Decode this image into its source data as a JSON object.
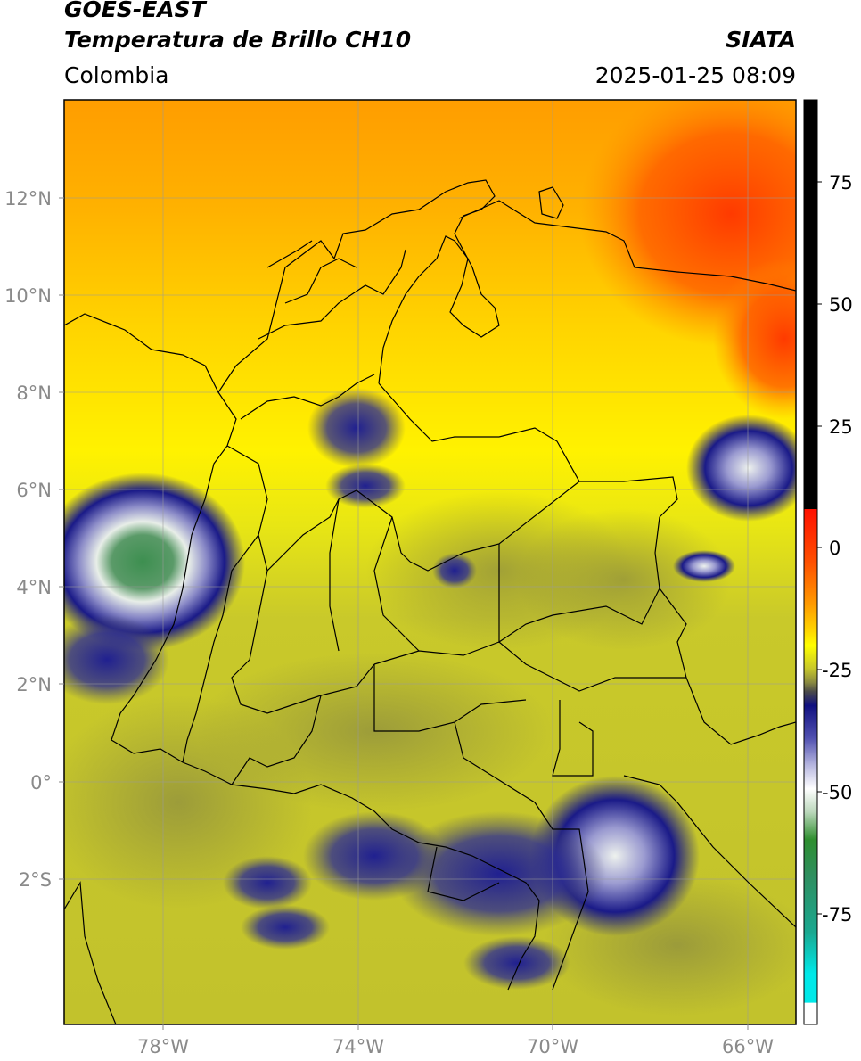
{
  "header": {
    "satellite": "GOES-EAST",
    "product": "Temperatura de Brillo CH10",
    "region": "Colombia",
    "source": "SIATA",
    "timestamp": "2025-01-25 08:09"
  },
  "map": {
    "lon_range": [
      -80,
      -65
    ],
    "lat_range": [
      -5,
      14
    ],
    "lat_labels": [
      "12°N",
      "10°N",
      "8°N",
      "6°N",
      "4°N",
      "2°N",
      "0°",
      "2°S"
    ],
    "lon_labels": [
      "78°W",
      "74°W",
      "70°W",
      "66°W"
    ]
  },
  "colorbar": {
    "labels": [
      "75",
      "50",
      "25",
      "0",
      "-25",
      "-50",
      "-75"
    ],
    "colors": {
      "black": "#000000",
      "red": "#ff2000",
      "orange": "#ff9a00",
      "yellow": "#ffff00",
      "olive": "#b8b830",
      "gray": "#5a5a50",
      "navy": "#101080",
      "white": "#ffffff",
      "green": "#2f8f2f",
      "cyan": "#00e0e0"
    }
  }
}
